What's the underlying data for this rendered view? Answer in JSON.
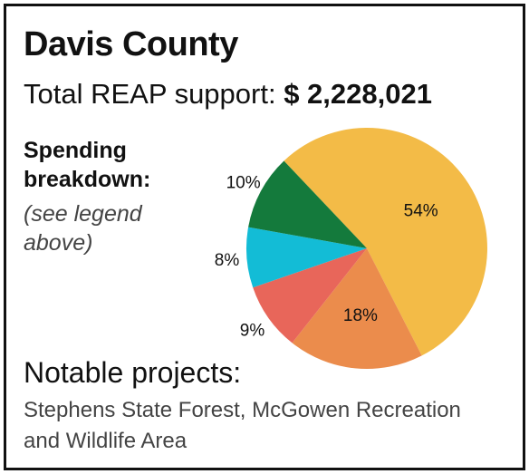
{
  "title": "Davis County",
  "support": {
    "label": "Total REAP support:",
    "amount": "$ 2,228,021"
  },
  "spending": {
    "heading": "Spending breakdown:",
    "note": "(see legend above)"
  },
  "notable": {
    "heading": "Notable projects:",
    "text": "Stephens State Forest, McGowen Recreation and Wildlife Area"
  },
  "chart_data": {
    "type": "pie",
    "values": [
      54,
      18,
      9,
      8,
      10
    ],
    "labels": [
      "54%",
      "18%",
      "9%",
      "8%",
      "10%"
    ],
    "colors": [
      "#f3bb47",
      "#eb8c4c",
      "#e8665a",
      "#13bcd6",
      "#147a3c"
    ],
    "label_placement": [
      "inside",
      "inside",
      "outside",
      "outside",
      "outside"
    ],
    "start": "top-left, clockwise"
  }
}
